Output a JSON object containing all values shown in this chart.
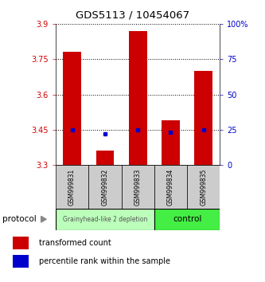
{
  "title": "GDS5113 / 10454067",
  "samples": [
    "GSM999831",
    "GSM999832",
    "GSM999833",
    "GSM999834",
    "GSM999835"
  ],
  "bar_bottom": 3.3,
  "bar_tops": [
    3.78,
    3.36,
    3.87,
    3.49,
    3.7
  ],
  "percentile_ranks": [
    25,
    22,
    25,
    23,
    25
  ],
  "ylim_left": [
    3.3,
    3.9
  ],
  "ylim_right": [
    0,
    100
  ],
  "yticks_left": [
    3.3,
    3.45,
    3.6,
    3.75,
    3.9
  ],
  "yticks_right": [
    0,
    25,
    50,
    75,
    100
  ],
  "ytick_labels_left": [
    "3.3",
    "3.45",
    "3.6",
    "3.75",
    "3.9"
  ],
  "ytick_labels_right": [
    "0",
    "25",
    "50",
    "75",
    "100%"
  ],
  "bar_color": "#CC0000",
  "percentile_color": "#0000CC",
  "group1_label": "Grainyhead-like 2 depletion",
  "group2_label": "control",
  "group1_color": "#BBFFBB",
  "group2_color": "#44EE44",
  "group1_indices": [
    0,
    1,
    2
  ],
  "group2_indices": [
    3,
    4
  ],
  "protocol_label": "protocol",
  "legend_bar_label": "transformed count",
  "legend_pct_label": "percentile rank within the sample",
  "bar_width": 0.55,
  "bg_color": "#FFFFFF"
}
